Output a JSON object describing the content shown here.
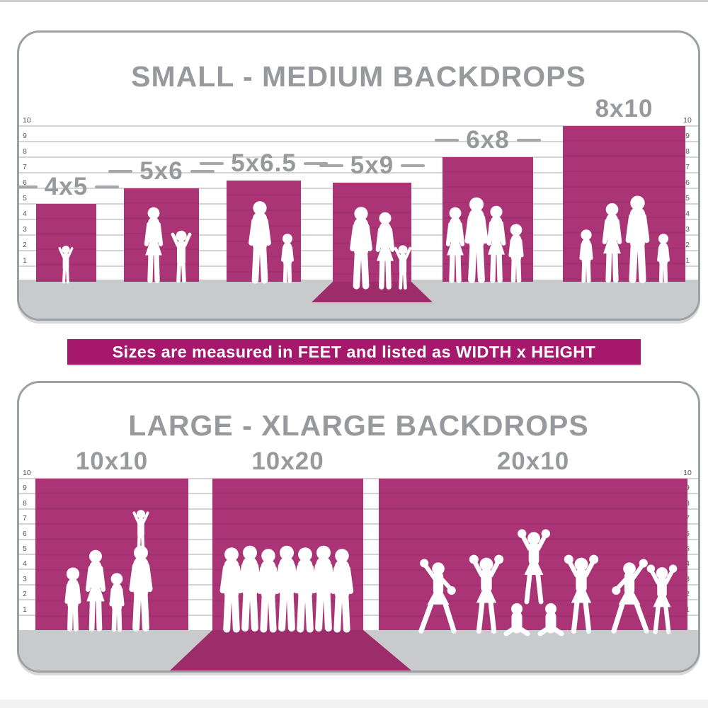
{
  "colors": {
    "backdrop_pink": "#aa3476",
    "floor_sweep_pink": "#9d2c6a",
    "banner_magenta": "#a6186c",
    "title_gray": "#97999c",
    "floor_gray": "#c9cacb",
    "gridline_gray": "#d3d4d5",
    "panel_border_gray": "#9aa0a3",
    "silhouette_white": "#ffffff"
  },
  "ruler_ticks": [
    "10",
    "9",
    "8",
    "7",
    "6",
    "5",
    "4",
    "3",
    "2",
    "1"
  ],
  "banner": {
    "text": "Sizes are measured in FEET and listed as WIDTH x HEIGHT"
  },
  "panels": [
    {
      "title": "SMALL - MEDIUM BACKDROPS",
      "ruler_unit": "feet",
      "backdrops": [
        {
          "label": "4x5",
          "width_ft": 4,
          "height_ft": 5,
          "floor_sweep": false,
          "figures": [
            "toddler"
          ]
        },
        {
          "label": "5x6",
          "width_ft": 5,
          "height_ft": 6,
          "floor_sweep": false,
          "figures": [
            "woman",
            "child-arms-raised"
          ]
        },
        {
          "label": "5x6.5",
          "width_ft": 5,
          "height_ft": 6.5,
          "floor_sweep": false,
          "figures": [
            "man",
            "boy"
          ]
        },
        {
          "label": "5x9",
          "width_ft": 5,
          "height_ft": 9,
          "floor_sweep": true,
          "figures": [
            "man",
            "woman",
            "child-arms-raised"
          ]
        },
        {
          "label": "6x8",
          "width_ft": 6,
          "height_ft": 8,
          "floor_sweep": false,
          "figures": [
            "woman",
            "man",
            "woman",
            "boy"
          ]
        },
        {
          "label": "8x10",
          "width_ft": 8,
          "height_ft": 10,
          "floor_sweep": false,
          "figures": [
            "girl",
            "woman",
            "man",
            "boy"
          ]
        }
      ]
    },
    {
      "title": "LARGE - XLARGE BACKDROPS",
      "ruler_unit": "feet",
      "backdrops": [
        {
          "label": "10x10",
          "width_ft": 10,
          "height_ft": 10,
          "floor_sweep": false,
          "figures": [
            "boy",
            "woman",
            "girl",
            "man",
            "child-on-shoulders"
          ]
        },
        {
          "label": "10x20",
          "width_ft": 10,
          "height_ft": 20,
          "floor_sweep": true,
          "figures": [
            "man",
            "man",
            "man",
            "man",
            "man",
            "man",
            "man"
          ]
        },
        {
          "label": "20x10",
          "width_ft": 20,
          "height_ft": 10,
          "floor_sweep": false,
          "figures": [
            "cheerleader-lunge",
            "cheerleader",
            "cheerleader-sitting",
            "cheerleader-top-of-pyramid",
            "cheerleader-sitting",
            "cheerleader",
            "cheerleader-lunge",
            "cheerleader"
          ]
        }
      ]
    }
  ],
  "chart_data": {
    "type": "bar",
    "title": "Backdrop size comparison",
    "unit": "feet",
    "axis": {
      "min": 0,
      "max": 10,
      "ticks": [
        1,
        2,
        3,
        4,
        5,
        6,
        7,
        8,
        9,
        10
      ]
    },
    "groups": [
      {
        "name": "SMALL - MEDIUM BACKDROPS",
        "categories": [
          "4x5",
          "5x6",
          "5x6.5",
          "5x9",
          "6x8",
          "8x10"
        ],
        "width_ft": [
          4,
          5,
          5,
          5,
          6,
          8
        ],
        "height_ft": [
          5,
          6,
          6.5,
          9,
          8,
          10
        ],
        "floor_sweep": [
          false,
          false,
          false,
          true,
          false,
          false
        ]
      },
      {
        "name": "LARGE - XLARGE BACKDROPS",
        "categories": [
          "10x10",
          "10x20",
          "20x10"
        ],
        "width_ft": [
          10,
          10,
          20
        ],
        "height_ft": [
          10,
          20,
          10
        ],
        "floor_sweep": [
          false,
          true,
          false
        ]
      }
    ],
    "note": "Sizes are measured in FEET and listed as WIDTH x HEIGHT"
  }
}
